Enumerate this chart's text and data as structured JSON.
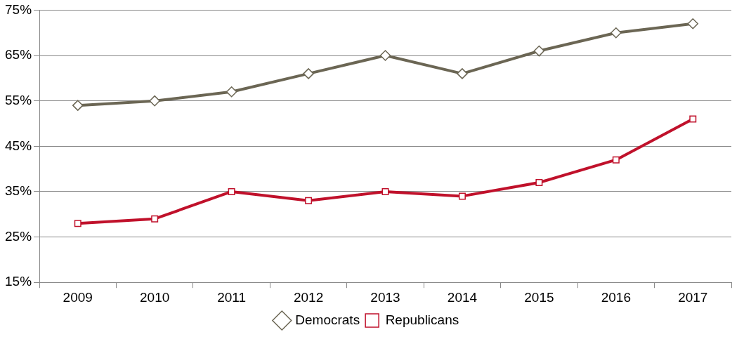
{
  "chart_data": {
    "type": "line",
    "categories": [
      "2009",
      "2010",
      "2011",
      "2012",
      "2013",
      "2014",
      "2015",
      "2016",
      "2017"
    ],
    "series": [
      {
        "name": "Democrats",
        "color": "#6b6654",
        "marker": "diamond",
        "values": [
          54,
          55,
          57,
          61,
          65,
          61,
          66,
          70,
          72
        ]
      },
      {
        "name": "Republicans",
        "color": "#c0112b",
        "marker": "square",
        "values": [
          28,
          29,
          35,
          33,
          35,
          34,
          37,
          42,
          51
        ]
      }
    ],
    "ylim": [
      15,
      75
    ],
    "yticks": [
      {
        "value": 15,
        "label": "15%"
      },
      {
        "value": 25,
        "label": "25%"
      },
      {
        "value": 35,
        "label": "35%"
      },
      {
        "value": 45,
        "label": "45%"
      },
      {
        "value": 55,
        "label": "55%"
      },
      {
        "value": 65,
        "label": "65%"
      },
      {
        "value": 75,
        "label": "75%"
      }
    ],
    "grid": "y",
    "legend": "bottom",
    "line_style": "solid"
  }
}
